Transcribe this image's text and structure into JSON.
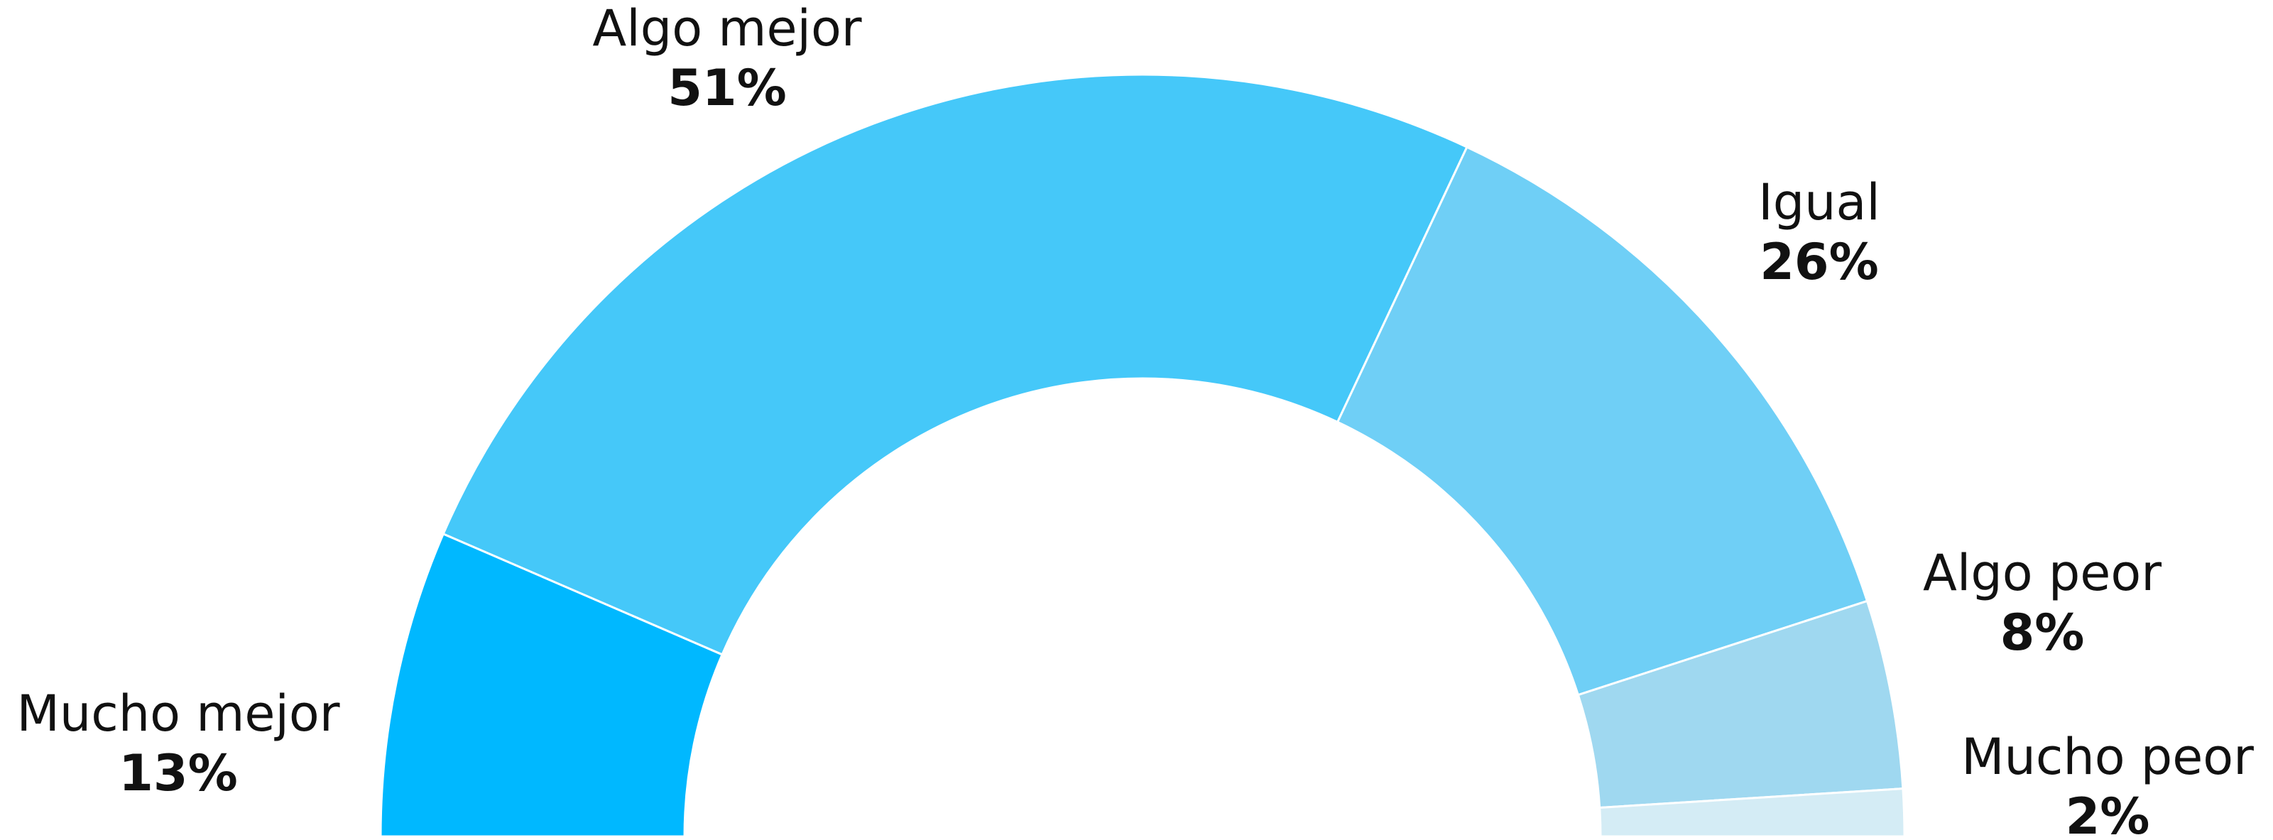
{
  "chart_data": {
    "type": "semi-donut",
    "categories": [
      "Mucho mejor",
      "Algo mejor",
      "Igual",
      "Algo peor",
      "Mucho peor"
    ],
    "values": [
      13,
      51,
      26,
      8,
      2
    ],
    "value_labels": [
      "13%",
      "51%",
      "26%",
      "8%",
      "2%"
    ],
    "colors": [
      "#00b8ff",
      "#45c8f9",
      "#6fcff6",
      "#9fd8f0",
      "#d4ecf5"
    ]
  }
}
